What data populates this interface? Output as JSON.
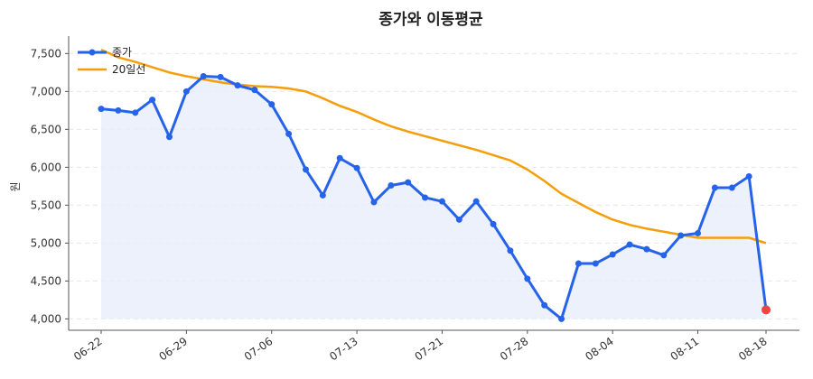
{
  "chart_data": {
    "type": "line",
    "title": "종가와 이동평균",
    "xlabel": "",
    "ylabel": "원",
    "ylim": [
      3850,
      7730
    ],
    "yticks": [
      4000,
      4500,
      5000,
      5500,
      6000,
      6500,
      7000,
      7500
    ],
    "ytick_labels": [
      "4,000",
      "4,500",
      "5,000",
      "5,500",
      "6,000",
      "6,500",
      "7,000",
      "7,500"
    ],
    "xtick_labels": [
      "06-22",
      "06-29",
      "07-06",
      "07-13",
      "07-21",
      "07-28",
      "08-04",
      "08-11",
      "08-18"
    ],
    "xtick_indices": [
      0,
      5,
      10,
      15,
      20,
      25,
      30,
      35,
      39
    ],
    "grid": true,
    "legend_position": "top-left",
    "colors": {
      "close": "#2563eb",
      "ma20": "#f59e0b",
      "fill": "#e8eefb",
      "last_point": "#ef4444"
    },
    "series": [
      {
        "name": "종가",
        "values": [
          6770,
          6750,
          6720,
          6890,
          6400,
          7000,
          7200,
          7190,
          7080,
          7020,
          6830,
          6440,
          5970,
          5630,
          6120,
          5990,
          5540,
          5760,
          5800,
          5600,
          5550,
          5310,
          5550,
          5250,
          4900,
          4530,
          4180,
          4000,
          4730,
          4730,
          4850,
          4980,
          4920,
          4840,
          5100,
          5130,
          5730,
          5730,
          5880,
          4120
        ]
      },
      {
        "name": "20일선",
        "values": [
          7550,
          7450,
          7390,
          7320,
          7250,
          7200,
          7160,
          7120,
          7090,
          7070,
          7060,
          7040,
          7000,
          6910,
          6810,
          6730,
          6630,
          6540,
          6470,
          6410,
          6350,
          6290,
          6230,
          6160,
          6090,
          5970,
          5820,
          5650,
          5530,
          5410,
          5310,
          5240,
          5190,
          5150,
          5110,
          5070,
          5070,
          5070,
          5070,
          5000
        ]
      }
    ]
  }
}
